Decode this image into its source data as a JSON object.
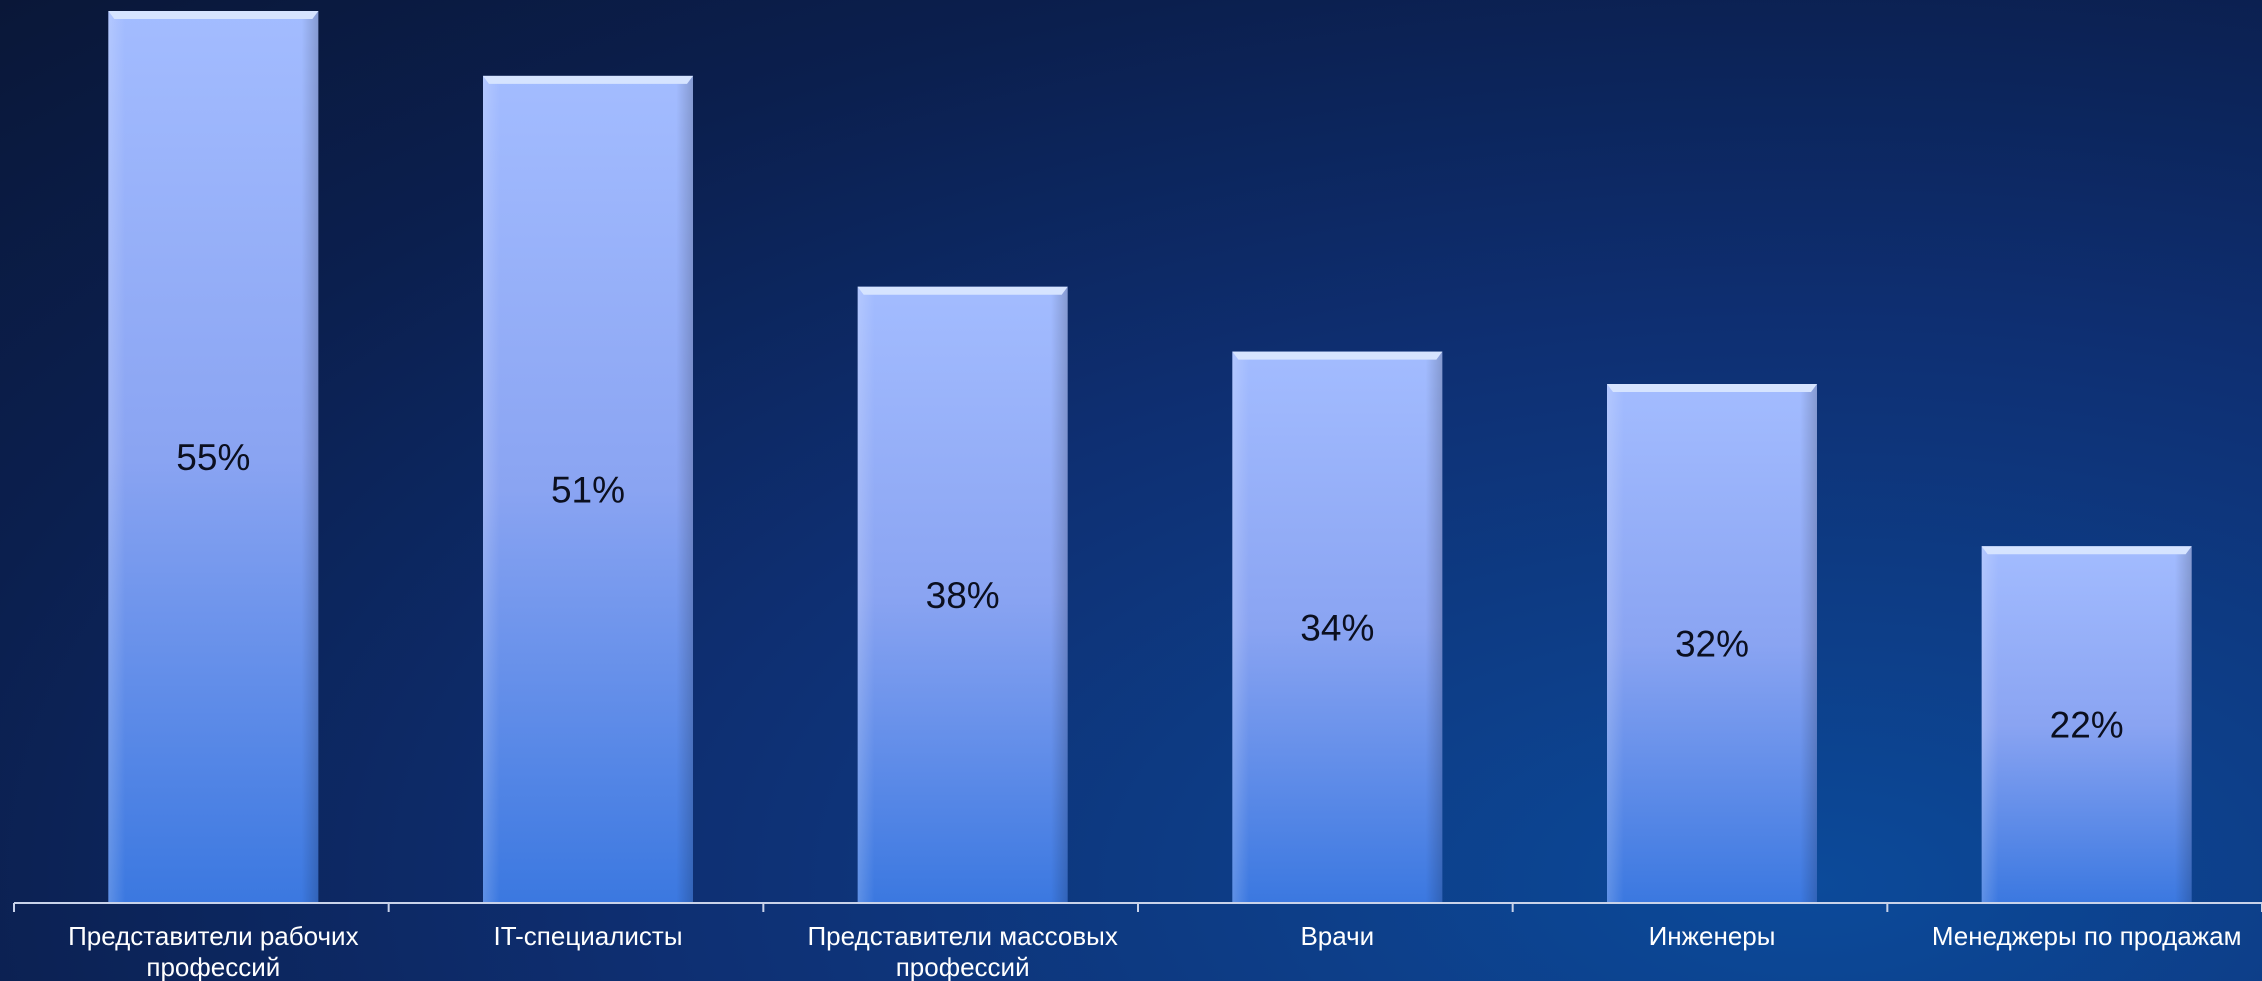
{
  "chart_data": {
    "type": "bar",
    "categories": [
      [
        "Представители рабочих",
        "профессий"
      ],
      [
        "IT-специалисты"
      ],
      [
        "Представители массовых",
        "профессий"
      ],
      [
        "Врачи"
      ],
      [
        "Инженеры"
      ],
      [
        "Менеджеры по продажам"
      ]
    ],
    "values": [
      55,
      51,
      38,
      34,
      32,
      22
    ],
    "value_labels": [
      "55%",
      "51%",
      "38%",
      "34%",
      "32%",
      "22%"
    ],
    "ylim": [
      0,
      56
    ],
    "grid": false,
    "legend": "none",
    "colors": {
      "bar_top": "#a3bcff",
      "bar_mid": "#8ea8f5",
      "bar_bottom": "#3b78e0",
      "bar_cap": "#d6e4ff",
      "axis": "#c9d3ea"
    }
  }
}
